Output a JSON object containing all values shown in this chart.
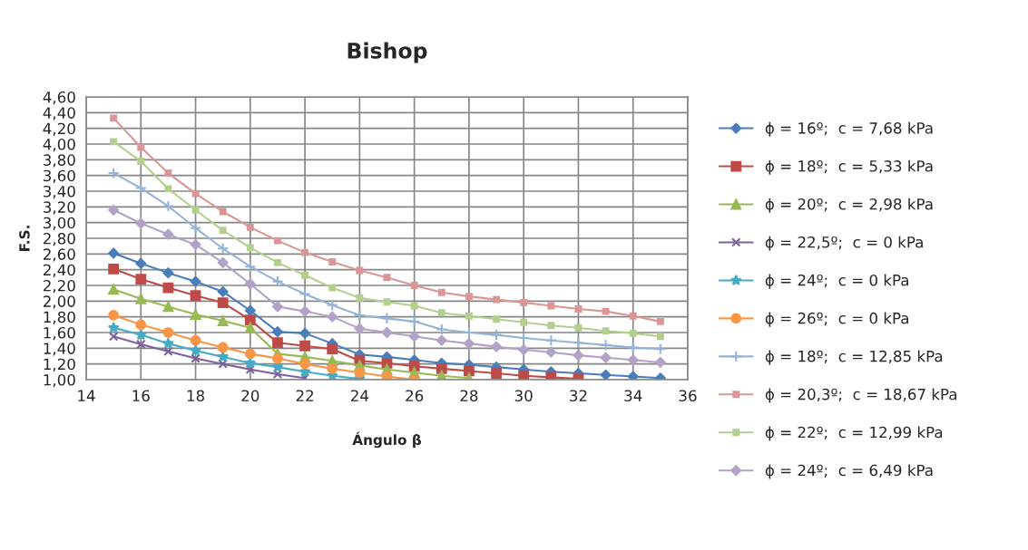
{
  "chart_data": {
    "type": "line",
    "title": "Bishop",
    "xlabel": "Ángulo β",
    "ylabel": "F.S.",
    "x": [
      15,
      16,
      17,
      18,
      19,
      20,
      21,
      22,
      23,
      24,
      25,
      26,
      27,
      28,
      29,
      30,
      31,
      32,
      33,
      34,
      35
    ],
    "xlim": [
      14,
      36
    ],
    "xticks": [
      14,
      16,
      18,
      20,
      22,
      24,
      26,
      28,
      30,
      32,
      34,
      36
    ],
    "ylim": [
      1.0,
      4.6
    ],
    "yticks": [
      {
        "value": 1.0,
        "label": "1,00"
      },
      {
        "value": 1.2,
        "label": "1,20"
      },
      {
        "value": 1.4,
        "label": "1,40"
      },
      {
        "value": 1.6,
        "label": "1,60"
      },
      {
        "value": 1.8,
        "label": "1,80"
      },
      {
        "value": 2.0,
        "label": "2,00"
      },
      {
        "value": 2.2,
        "label": "2,20"
      },
      {
        "value": 2.4,
        "label": "2,40"
      },
      {
        "value": 2.6,
        "label": "2,60"
      },
      {
        "value": 2.8,
        "label": "2,80"
      },
      {
        "value": 3.0,
        "label": "3,00"
      },
      {
        "value": 3.2,
        "label": "3,20"
      },
      {
        "value": 3.4,
        "label": "3,40"
      },
      {
        "value": 3.6,
        "label": "3,60"
      },
      {
        "value": 3.8,
        "label": "3,80"
      },
      {
        "value": 4.0,
        "label": "4,00"
      },
      {
        "value": 4.2,
        "label": "4,20"
      },
      {
        "value": 4.4,
        "label": "4,40"
      },
      {
        "value": 4.6,
        "label": "4,60"
      }
    ],
    "grid": true,
    "legend": "right",
    "line_style": "solid",
    "series": [
      {
        "name": "ϕ = 16º;  c = 7,68 kPa",
        "color": "#4a7ebb",
        "marker": "diamond",
        "values": [
          2.61,
          2.48,
          2.36,
          2.25,
          2.12,
          1.88,
          1.61,
          1.59,
          1.46,
          1.32,
          1.29,
          1.25,
          1.21,
          1.19,
          1.16,
          1.13,
          1.1,
          1.08,
          1.06,
          1.04,
          1.02
        ]
      },
      {
        "name": "ϕ = 18º;  c = 5,33 kPa",
        "color": "#be4b48",
        "marker": "square",
        "values": [
          2.41,
          2.28,
          2.17,
          2.07,
          1.98,
          1.76,
          1.47,
          1.43,
          1.39,
          1.24,
          1.21,
          1.17,
          1.14,
          1.11,
          1.08,
          1.05,
          1.03,
          1.01,
          null,
          null,
          null
        ]
      },
      {
        "name": "ϕ = 20º;  c = 2,98 kPa",
        "color": "#98b954",
        "marker": "triangle",
        "values": [
          2.15,
          2.03,
          1.93,
          1.83,
          1.75,
          1.66,
          1.33,
          1.29,
          1.24,
          1.18,
          1.13,
          1.09,
          1.05,
          1.02,
          null,
          null,
          null,
          null,
          null,
          null,
          null
        ]
      },
      {
        "name": "ϕ = 22,5º;  c = 0 kPa",
        "color": "#7d60a0",
        "marker": "cross",
        "values": [
          1.55,
          1.45,
          1.36,
          1.27,
          1.2,
          1.13,
          1.07,
          1.02,
          null,
          null,
          null,
          null,
          null,
          null,
          null,
          null,
          null,
          null,
          null,
          null,
          null
        ]
      },
      {
        "name": "ϕ = 24º;  c = 0 kPa",
        "color": "#46aac5",
        "marker": "star",
        "values": [
          1.66,
          1.57,
          1.46,
          1.37,
          1.29,
          1.21,
          1.16,
          1.1,
          1.05,
          1.01,
          null,
          null,
          null,
          null,
          null,
          null,
          null,
          null,
          null,
          null,
          null
        ]
      },
      {
        "name": "ϕ = 26º;  c = 0 kPa",
        "color": "#f79646",
        "marker": "circle",
        "values": [
          1.82,
          1.7,
          1.6,
          1.5,
          1.41,
          1.33,
          1.27,
          1.2,
          1.14,
          1.09,
          1.04,
          1.0,
          null,
          null,
          null,
          null,
          null,
          null,
          null,
          null,
          null
        ]
      },
      {
        "name": "ϕ = 18º;  c = 12,85 kPa",
        "color": "#95b3d7",
        "marker": "plus",
        "values": [
          3.63,
          3.44,
          3.21,
          2.93,
          2.67,
          2.44,
          2.25,
          2.09,
          1.95,
          1.82,
          1.78,
          1.74,
          1.64,
          1.6,
          1.57,
          1.53,
          1.5,
          1.47,
          1.44,
          1.41,
          1.39
        ]
      },
      {
        "name": "ϕ = 20,3º;  c = 18,67 kPa",
        "color": "#d99694",
        "marker": "square",
        "values": [
          4.33,
          3.96,
          3.63,
          3.37,
          3.14,
          2.94,
          2.77,
          2.62,
          2.5,
          2.39,
          2.3,
          2.2,
          2.11,
          2.06,
          2.02,
          1.98,
          1.94,
          1.9,
          1.87,
          1.81,
          1.74
        ]
      },
      {
        "name": "ϕ = 22º;  c = 12,99 kPa",
        "color": "#b3cf8d",
        "marker": "square",
        "values": [
          4.03,
          3.78,
          3.43,
          3.16,
          2.9,
          2.68,
          2.49,
          2.33,
          2.17,
          2.04,
          1.99,
          1.94,
          1.85,
          1.81,
          1.77,
          1.73,
          1.69,
          1.66,
          1.62,
          1.59,
          1.55
        ]
      },
      {
        "name": "ϕ = 24º;  c = 6,49 kPa",
        "color": "#b3a2c7",
        "marker": "diamond",
        "values": [
          3.16,
          2.99,
          2.85,
          2.72,
          2.49,
          2.22,
          1.93,
          1.87,
          1.8,
          1.65,
          1.6,
          1.55,
          1.5,
          1.46,
          1.42,
          1.38,
          1.35,
          1.31,
          1.28,
          1.25,
          1.22
        ]
      }
    ]
  }
}
